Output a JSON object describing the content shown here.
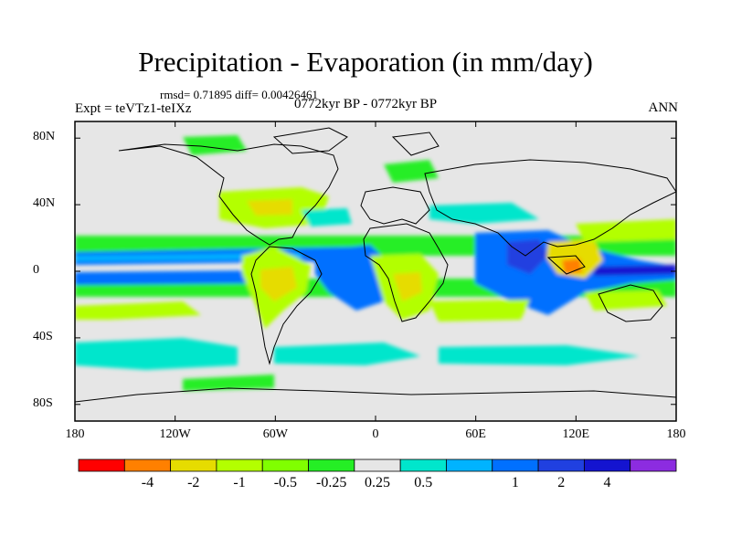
{
  "title": "Precipitation - Evaporation (in mm/day)",
  "stats": "rmsd= 0.71895 diff= 0.00426461",
  "experiment": "Expt = teVTz1-teIXz",
  "period": "0772kyr BP - 0772kyr BP",
  "season": "ANN",
  "y_axis": {
    "labels": [
      {
        "value": 80,
        "text": "80N"
      },
      {
        "value": 40,
        "text": "40N"
      },
      {
        "value": 0,
        "text": "0"
      },
      {
        "value": -40,
        "text": "40S"
      },
      {
        "value": -80,
        "text": "80S"
      }
    ],
    "range": [
      -90,
      90
    ]
  },
  "x_axis": {
    "labels": [
      {
        "value": -180,
        "text": "180"
      },
      {
        "value": -120,
        "text": "120W"
      },
      {
        "value": -60,
        "text": "60W"
      },
      {
        "value": 0,
        "text": "0"
      },
      {
        "value": 60,
        "text": "60E"
      },
      {
        "value": 120,
        "text": "120E"
      },
      {
        "value": 180,
        "text": "180"
      }
    ],
    "range": [
      -180,
      180
    ]
  },
  "colorbar": {
    "colors": [
      "#ff0000",
      "#ff8000",
      "#e6dc00",
      "#b3ff00",
      "#80ff00",
      "#25ee25",
      "#e6e6e6",
      "#00e6cc",
      "#00b3ff",
      "#0070ff",
      "#2040e0",
      "#1414d0",
      "#8c2ce0"
    ],
    "labels": [
      "-4",
      "-2",
      "-1",
      "-0.5",
      "-0.25",
      "0.25",
      "0.5",
      "1",
      "2",
      "4"
    ]
  }
}
